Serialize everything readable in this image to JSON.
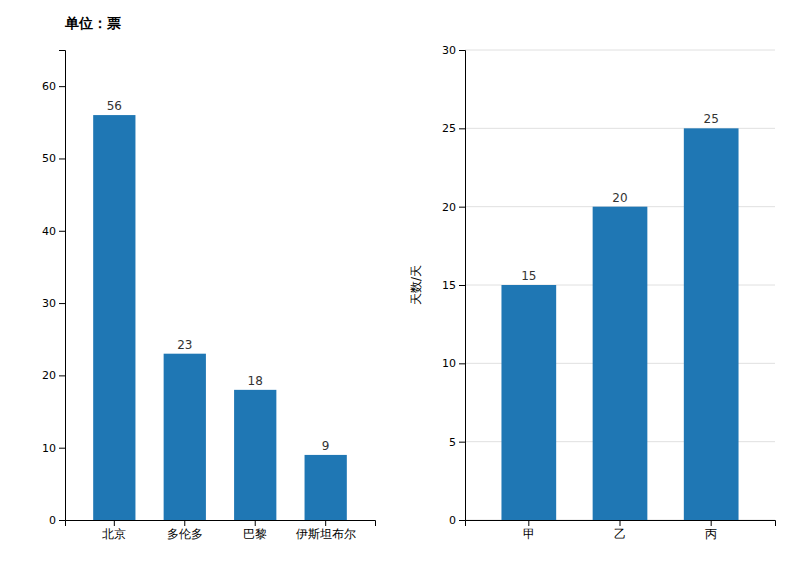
{
  "chart_data": [
    {
      "type": "bar",
      "title": "单位：票",
      "categories": [
        "北京",
        "多伦多",
        "巴黎",
        "伊斯坦布尔"
      ],
      "values": [
        56,
        23,
        18,
        9
      ],
      "ylim": [
        0,
        65
      ],
      "yticks": [
        0,
        10,
        20,
        30,
        40,
        50,
        60
      ],
      "grid": false,
      "data_labels": true
    },
    {
      "type": "bar",
      "ylabel": "天数/天",
      "categories": [
        "甲",
        "乙",
        "丙"
      ],
      "values": [
        15,
        20,
        25
      ],
      "ylim": [
        0,
        30
      ],
      "yticks": [
        0,
        5,
        10,
        15,
        20,
        25,
        30
      ],
      "grid": true,
      "data_labels": true
    }
  ]
}
